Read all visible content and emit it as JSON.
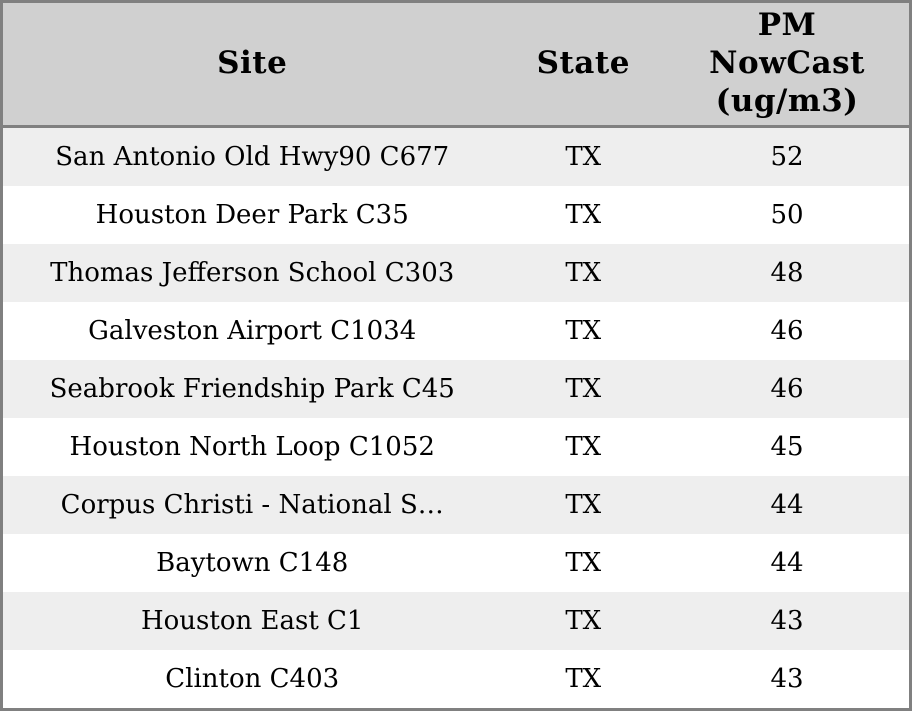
{
  "table": {
    "columns": [
      {
        "key": "site",
        "label": "Site"
      },
      {
        "key": "state",
        "label": "State"
      },
      {
        "key": "pm",
        "label": "PM\nNowCast\n(ug/m3)"
      }
    ],
    "rows": [
      {
        "site": "San Antonio Old Hwy90 C677",
        "state": "TX",
        "pm": "52"
      },
      {
        "site": "Houston Deer Park C35",
        "state": "TX",
        "pm": "50"
      },
      {
        "site": "Thomas Jefferson School C303",
        "state": "TX",
        "pm": "48"
      },
      {
        "site": "Galveston Airport C1034",
        "state": "TX",
        "pm": "46"
      },
      {
        "site": "Seabrook Friendship Park C45",
        "state": "TX",
        "pm": "46"
      },
      {
        "site": "Houston North Loop C1052",
        "state": "TX",
        "pm": "45"
      },
      {
        "site": "Corpus Christi - National S…",
        "state": "TX",
        "pm": "44"
      },
      {
        "site": "Baytown C148",
        "state": "TX",
        "pm": "44"
      },
      {
        "site": "Houston East C1",
        "state": "TX",
        "pm": "43"
      },
      {
        "site": "Clinton C403",
        "state": "TX",
        "pm": "43"
      }
    ]
  },
  "chart_data": {
    "type": "table",
    "title": "",
    "columns": [
      "Site",
      "State",
      "PM NowCast (ug/m3)"
    ],
    "rows": [
      [
        "San Antonio Old Hwy90 C677",
        "TX",
        52
      ],
      [
        "Houston Deer Park C35",
        "TX",
        50
      ],
      [
        "Thomas Jefferson School C303",
        "TX",
        48
      ],
      [
        "Galveston Airport C1034",
        "TX",
        46
      ],
      [
        "Seabrook Friendship Park C45",
        "TX",
        46
      ],
      [
        "Houston North Loop C1052",
        "TX",
        45
      ],
      [
        "Corpus Christi - National S…",
        "TX",
        44
      ],
      [
        "Baytown C148",
        "TX",
        44
      ],
      [
        "Houston East C1",
        "TX",
        43
      ],
      [
        "Clinton C403",
        "TX",
        43
      ]
    ]
  },
  "colors": {
    "header_bg": "#d0d0d0",
    "row_alt_bg": "#eeeeee",
    "row_bg": "#ffffff",
    "border": "#808080",
    "text": "#000000"
  }
}
